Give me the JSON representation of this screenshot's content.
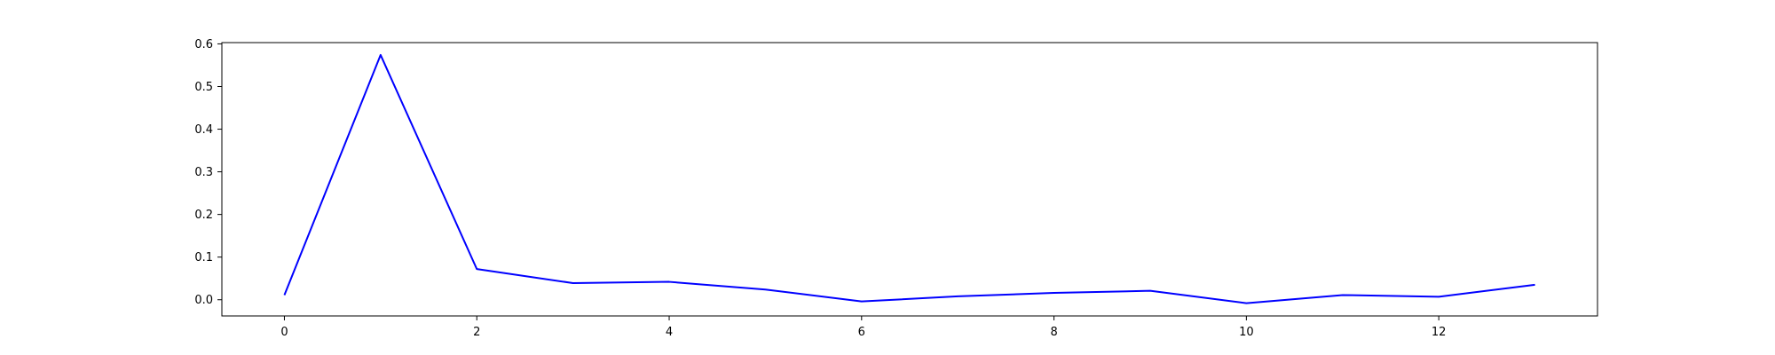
{
  "chart_data": {
    "type": "line",
    "title": "",
    "xlabel": "",
    "ylabel": "",
    "xlim": [
      -0.65,
      13.65
    ],
    "ylim": [
      -0.038,
      0.603
    ],
    "xticks": [
      0,
      2,
      4,
      6,
      8,
      10,
      12
    ],
    "yticks": [
      0.0,
      0.1,
      0.2,
      0.3,
      0.4,
      0.5,
      0.6
    ],
    "grid": false,
    "legend": "none",
    "series": [
      {
        "color": "#0000ff",
        "x": [
          0,
          1,
          2,
          3,
          4,
          5,
          6,
          7,
          8,
          9,
          10,
          11,
          12,
          13
        ],
        "y": [
          0.011,
          0.574,
          0.072,
          0.039,
          0.042,
          0.024,
          -0.004,
          0.008,
          0.016,
          0.021,
          -0.008,
          0.011,
          0.007,
          0.035
        ]
      }
    ]
  }
}
